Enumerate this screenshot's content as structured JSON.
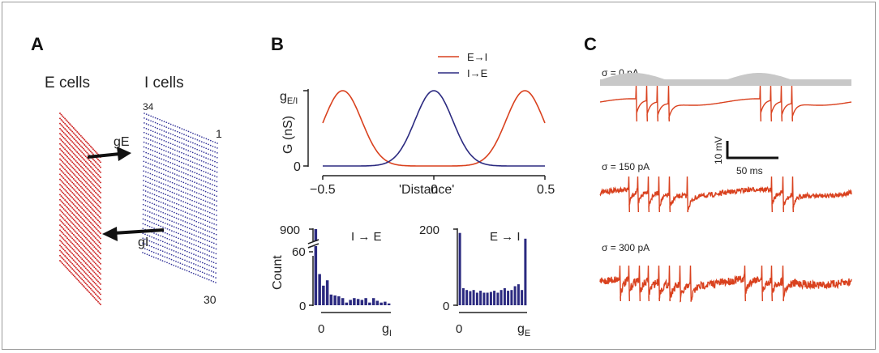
{
  "panels": {
    "A": {
      "label": "A",
      "e_cells_label": "E cells",
      "i_cells_label": "I cells",
      "grid_label_top": "34",
      "grid_label_right": "1",
      "grid_label_bottom": "30",
      "arrow_to_i_label": "gE",
      "arrow_to_e_label": "gI",
      "e_color": "#cc2222",
      "i_color": "#333399"
    },
    "B": {
      "label": "B"
    },
    "C": {
      "label": "C"
    }
  },
  "chart_data": [
    {
      "id": "B-top",
      "type": "line",
      "xlabel": "'Distance'",
      "ylabel": "G (nS)",
      "ytick_top_main": "g",
      "ytick_top_sub": "E/I",
      "ytick_bottom": "0",
      "xticks": [
        "−0.5",
        "0",
        "0.5"
      ],
      "xlim": [
        -0.5,
        0.5
      ],
      "series": [
        {
          "name": "E→I",
          "color": "#d9411e",
          "shape": "two peaks near ±0.41, trough at 0"
        },
        {
          "name": "I→E",
          "color": "#2b2a80",
          "shape": "single gaussian peak at 0"
        }
      ]
    },
    {
      "id": "B-hist-IE",
      "type": "bar",
      "title": "I → E",
      "title_color": "#3a3aa8",
      "ylabel": "Count",
      "yticks": [
        "900",
        "60",
        "0"
      ],
      "xticks_left": "0",
      "xtick_right_main": "g",
      "xtick_right_sub": "I",
      "axis_break": true,
      "values": [
        900,
        35,
        22,
        28,
        12,
        11,
        10,
        8,
        3,
        6,
        8,
        7,
        6,
        8,
        3,
        8,
        5,
        3,
        4,
        2
      ],
      "color": "#2b2a80"
    },
    {
      "id": "B-hist-EI",
      "type": "bar",
      "title": "E → I",
      "title_color": "#cc2222",
      "yticks": [
        "200",
        "0"
      ],
      "xticks_left": "0",
      "xtick_right_main": "g",
      "xtick_right_sub": "E",
      "values": [
        190,
        45,
        40,
        37,
        40,
        33,
        38,
        33,
        33,
        35,
        38,
        33,
        40,
        45,
        38,
        40,
        50,
        55,
        40,
        175
      ],
      "color": "#2b2a80"
    },
    {
      "id": "C-traces",
      "type": "line",
      "traces": [
        {
          "label": "σ = 0 pA",
          "noise": 0,
          "color": "#d9411e"
        },
        {
          "label": "σ = 150 pA",
          "noise": 150,
          "color": "#d9411e"
        },
        {
          "label": "σ = 300 pA",
          "noise": 300,
          "color": "#d9411e"
        }
      ],
      "scalebar_v_label": "10 mV",
      "scalebar_h_label": "50 ms",
      "input_fill_color": "#c8c8c8"
    }
  ]
}
